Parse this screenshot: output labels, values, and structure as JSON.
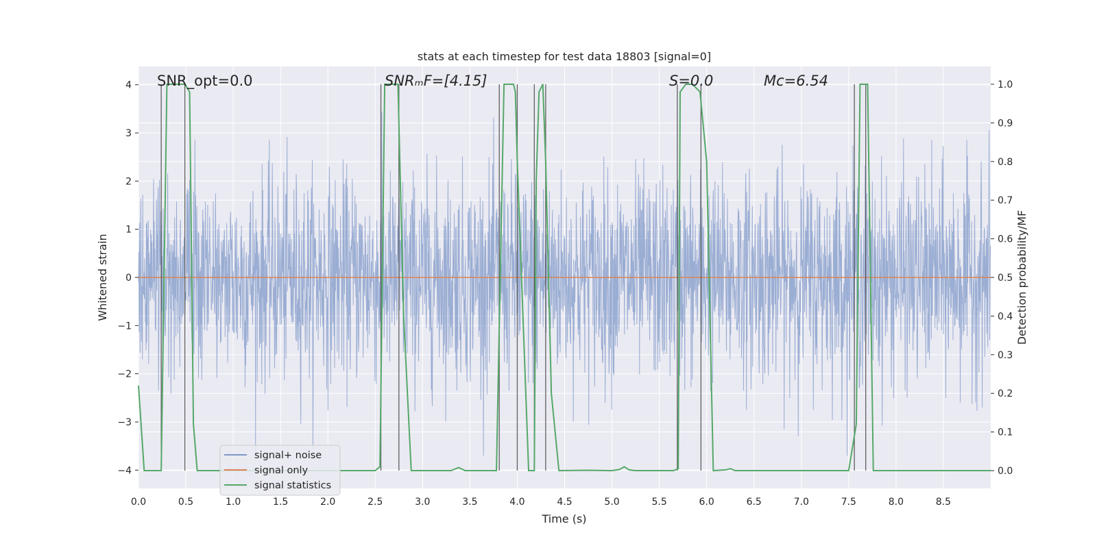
{
  "chart_data": {
    "type": "line",
    "title": "stats at each timestep for test data 18803 [signal=0]",
    "xlabel": "Time (s)",
    "ylabel_left": "Whitened strain",
    "ylabel_right": "Detection probability/MF",
    "xlim": [
      0.0,
      9.0
    ],
    "ylim_left": [
      -4.38,
      4.38
    ],
    "ylim_right": [
      -0.046,
      1.046
    ],
    "x_ticks": [
      0.0,
      0.5,
      1.0,
      1.5,
      2.0,
      2.5,
      3.0,
      3.5,
      4.0,
      4.5,
      5.0,
      5.5,
      6.0,
      6.5,
      7.0,
      7.5,
      8.0,
      8.5
    ],
    "x_tick_labels": [
      "0.0",
      "0.5",
      "1.0",
      "1.5",
      "2.0",
      "2.5",
      "3.0",
      "3.5",
      "4.0",
      "4.5",
      "5.0",
      "5.5",
      "6.0",
      "6.5",
      "7.0",
      "7.5",
      "8.0",
      "8.5"
    ],
    "y_left_ticks": [
      -4,
      -3,
      -2,
      -1,
      0,
      1,
      2,
      3,
      4
    ],
    "y_left_tick_labels": [
      "−4",
      "−3",
      "−2",
      "−1",
      "0",
      "1",
      "2",
      "3",
      "4"
    ],
    "y_right_ticks": [
      0.0,
      0.1,
      0.2,
      0.3,
      0.4,
      0.5,
      0.6,
      0.7,
      0.8,
      0.9,
      1.0
    ],
    "y_right_tick_labels": [
      "0.0",
      "0.1",
      "0.2",
      "0.3",
      "0.4",
      "0.5",
      "0.6",
      "0.7",
      "0.8",
      "0.9",
      "1.0"
    ],
    "grid": true,
    "legend_position": "lower-left",
    "annotations": [
      {
        "text": "SNR_opt=0.0",
        "x": 0.2
      },
      {
        "text": "SNRₘF=[4.15]",
        "x": 2.6
      },
      {
        "text": "S=0.0",
        "x": 5.6
      },
      {
        "text": "Mᴄ=6.54",
        "x": 6.6
      }
    ],
    "series": [
      {
        "name": "signal+ noise",
        "axis": "left",
        "color": "#7f98c8",
        "description": "noisy whitened strain, approx. -2.8 to 3.2 range with spikes near -3.6 and 3.8"
      },
      {
        "name": "signal only",
        "axis": "left",
        "color": "#dd8452",
        "x": [
          0.0,
          9.0
        ],
        "y": [
          0.0,
          0.0
        ]
      },
      {
        "name": "signal statistics",
        "axis": "right",
        "color": "#55a868",
        "x": [
          0.0,
          0.06,
          0.24,
          0.3,
          0.49,
          0.54,
          0.58,
          0.62,
          2.5,
          2.55,
          2.6,
          2.74,
          2.8,
          2.88,
          3.3,
          3.38,
          3.45,
          3.78,
          3.86,
          3.96,
          3.98,
          4.0,
          4.12,
          4.18,
          4.2,
          4.23,
          4.27,
          4.3,
          4.36,
          4.44,
          4.75,
          5.0,
          5.08,
          5.13,
          5.18,
          5.25,
          5.65,
          5.7,
          5.72,
          5.78,
          5.85,
          5.93,
          6.0,
          6.07,
          6.2,
          6.25,
          6.3,
          7.5,
          7.58,
          7.62,
          7.7,
          7.76,
          9.0
        ],
        "y": [
          0.22,
          0.0,
          0.0,
          1.0,
          1.0,
          0.98,
          0.12,
          0.0,
          0.0,
          0.01,
          1.0,
          1.0,
          0.4,
          0.0,
          0.0,
          0.008,
          0.0,
          0.0,
          1.0,
          1.0,
          0.98,
          0.8,
          0.0,
          0.0,
          0.75,
          0.98,
          1.0,
          0.8,
          0.2,
          0.0,
          0.001,
          0.0,
          0.003,
          0.01,
          0.002,
          0.0,
          0.0,
          0.005,
          0.98,
          1.0,
          1.0,
          0.98,
          0.8,
          0.0,
          0.002,
          0.005,
          0.0,
          0.0,
          0.12,
          1.0,
          1.0,
          0.0,
          0.0
        ]
      }
    ],
    "detection_markers_x": [
      0.24,
      0.49,
      2.56,
      2.75,
      3.81,
      4.0,
      4.18,
      4.3,
      5.69,
      5.94,
      7.56,
      7.68
    ]
  },
  "legend": [
    {
      "label": "signal+ noise",
      "color": "#7f98c8"
    },
    {
      "label": "signal only",
      "color": "#dd8452"
    },
    {
      "label": "signal statistics",
      "color": "#55a868"
    }
  ],
  "colors": {
    "axes_bg": "#eaeaf2",
    "grid": "#ffffff",
    "noise": "#7f98c8",
    "signal": "#dd8452",
    "stats": "#55a868",
    "marker": "#3b3b3b"
  }
}
